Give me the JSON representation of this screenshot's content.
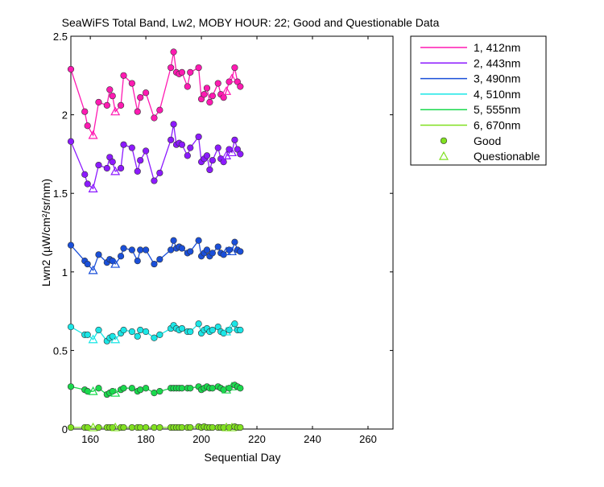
{
  "chart_data": {
    "type": "line",
    "title": "SeaWiFS Total Band, Lw2, MOBY HOUR: 22;  Good and Questionable Data",
    "xlabel": "Sequential Day",
    "ylabel": "Lwn2 (µW/cm²/sr/nm)",
    "xlim": [
      153,
      269
    ],
    "ylim": [
      0,
      2.5
    ],
    "xticks": [
      "160",
      "180",
      "200",
      "220",
      "240",
      "260"
    ],
    "xtick_values": [
      160,
      180,
      200,
      220,
      240,
      260
    ],
    "yticks": [
      "0",
      "0.5",
      "1",
      "1.5",
      "2",
      "2.5"
    ],
    "ytick_values": [
      0,
      0.5,
      1,
      1.5,
      2,
      2.5
    ],
    "grid": false,
    "legend_position": "outside-top-right",
    "marker_legend": [
      {
        "label": "Good",
        "marker": "circle",
        "color": "#80e020"
      },
      {
        "label": "Questionable",
        "marker": "triangle",
        "color": "#80e020"
      }
    ],
    "x": [
      153,
      158,
      159,
      161,
      163,
      166,
      167,
      168,
      169,
      171,
      172,
      175,
      177,
      178,
      180,
      183,
      185,
      189,
      190,
      191,
      192,
      193,
      195,
      196,
      199,
      200,
      201,
      202,
      203,
      204,
      206,
      207,
      208,
      209,
      210,
      211,
      212,
      213,
      214
    ],
    "questionable_x": [
      161,
      169,
      209,
      211
    ],
    "series": [
      {
        "name": "1, 412nm",
        "color": "#ff1ab2",
        "values": [
          2.29,
          2.02,
          1.93,
          1.87,
          2.08,
          2.06,
          2.16,
          2.12,
          2.02,
          2.06,
          2.25,
          2.2,
          2.02,
          2.11,
          2.14,
          1.98,
          2.03,
          2.3,
          2.4,
          2.27,
          2.26,
          2.27,
          2.18,
          2.27,
          2.3,
          2.1,
          2.13,
          2.17,
          2.08,
          2.12,
          2.2,
          2.13,
          2.11,
          2.15,
          2.21,
          2.23,
          2.3,
          2.21,
          2.18
        ],
        "markers": [
          2.29,
          2.02,
          1.93,
          1.87,
          2.08,
          2.06,
          2.16,
          2.12,
          2.02,
          2.06,
          2.25,
          2.2,
          2.02,
          2.11,
          2.14,
          1.98,
          2.03,
          2.3,
          2.4,
          2.27,
          2.26,
          2.27,
          2.18,
          2.27,
          2.3,
          2.1,
          2.13,
          2.17,
          2.08,
          2.12,
          2.2,
          2.13,
          2.11,
          2.15,
          2.21,
          2.23,
          2.3,
          2.21,
          2.18
        ]
      },
      {
        "name": "2, 443nm",
        "color": "#8c1aff",
        "values": [
          1.83,
          1.62,
          1.56,
          1.53,
          1.68,
          1.66,
          1.73,
          1.7,
          1.64,
          1.66,
          1.81,
          1.79,
          1.64,
          1.71,
          1.77,
          1.58,
          1.63,
          1.84,
          1.94,
          1.81,
          1.82,
          1.81,
          1.74,
          1.79,
          1.86,
          1.7,
          1.72,
          1.74,
          1.65,
          1.71,
          1.79,
          1.72,
          1.7,
          1.74,
          1.78,
          1.76,
          1.84,
          1.78,
          1.75
        ],
        "markers": [
          1.83,
          1.62,
          1.56,
          1.53,
          1.68,
          1.66,
          1.73,
          1.7,
          1.64,
          1.66,
          1.81,
          1.79,
          1.64,
          1.71,
          1.77,
          1.58,
          1.63,
          1.84,
          1.94,
          1.81,
          1.82,
          1.81,
          1.74,
          1.79,
          1.86,
          1.7,
          1.72,
          1.74,
          1.65,
          1.71,
          1.79,
          1.72,
          1.7,
          1.74,
          1.78,
          1.76,
          1.84,
          1.78,
          1.75
        ]
      },
      {
        "name": "3, 490nm",
        "color": "#1a4fd9",
        "values": [
          1.17,
          1.07,
          1.05,
          1.01,
          1.11,
          1.06,
          1.08,
          1.07,
          1.05,
          1.1,
          1.15,
          1.14,
          1.07,
          1.14,
          1.14,
          1.05,
          1.08,
          1.14,
          1.2,
          1.15,
          1.16,
          1.15,
          1.12,
          1.13,
          1.2,
          1.1,
          1.12,
          1.14,
          1.1,
          1.12,
          1.16,
          1.12,
          1.11,
          1.13,
          1.14,
          1.13,
          1.19,
          1.14,
          1.13
        ],
        "markers": [
          1.17,
          1.07,
          1.05,
          1.01,
          1.11,
          1.06,
          1.08,
          1.07,
          1.05,
          1.1,
          1.15,
          1.14,
          1.07,
          1.14,
          1.14,
          1.05,
          1.08,
          1.14,
          1.2,
          1.15,
          1.16,
          1.15,
          1.12,
          1.13,
          1.2,
          1.1,
          1.12,
          1.14,
          1.1,
          1.12,
          1.16,
          1.12,
          1.11,
          1.13,
          1.14,
          1.13,
          1.19,
          1.14,
          1.13
        ]
      },
      {
        "name": "4, 510nm",
        "color": "#1ae6e6",
        "values": [
          0.65,
          0.6,
          0.6,
          0.57,
          0.63,
          0.56,
          0.58,
          0.59,
          0.57,
          0.61,
          0.63,
          0.62,
          0.59,
          0.63,
          0.62,
          0.58,
          0.6,
          0.64,
          0.66,
          0.64,
          0.63,
          0.64,
          0.62,
          0.62,
          0.67,
          0.61,
          0.63,
          0.64,
          0.62,
          0.63,
          0.65,
          0.62,
          0.61,
          0.62,
          0.63,
          0.65,
          0.67,
          0.63,
          0.63
        ],
        "markers": [
          0.65,
          0.6,
          0.6,
          0.57,
          0.63,
          0.56,
          0.58,
          0.59,
          0.57,
          0.61,
          0.63,
          0.62,
          0.59,
          0.63,
          0.62,
          0.58,
          0.6,
          0.64,
          0.66,
          0.64,
          0.63,
          0.64,
          0.62,
          0.62,
          0.67,
          0.61,
          0.63,
          0.64,
          0.62,
          0.63,
          0.65,
          0.62,
          0.61,
          0.62,
          0.63,
          0.65,
          0.67,
          0.63,
          0.63
        ]
      },
      {
        "name": "5, 555nm",
        "color": "#1ad94d",
        "values": [
          0.27,
          0.25,
          0.24,
          0.24,
          0.26,
          0.22,
          0.23,
          0.24,
          0.23,
          0.25,
          0.26,
          0.26,
          0.24,
          0.25,
          0.26,
          0.23,
          0.24,
          0.26,
          0.26,
          0.26,
          0.26,
          0.26,
          0.26,
          0.26,
          0.27,
          0.25,
          0.26,
          0.27,
          0.26,
          0.26,
          0.27,
          0.26,
          0.25,
          0.25,
          0.26,
          0.27,
          0.28,
          0.27,
          0.26
        ],
        "markers": [
          0.27,
          0.25,
          0.24,
          0.24,
          0.26,
          0.22,
          0.23,
          0.24,
          0.23,
          0.25,
          0.26,
          0.26,
          0.24,
          0.25,
          0.26,
          0.23,
          0.24,
          0.26,
          0.26,
          0.26,
          0.26,
          0.26,
          0.26,
          0.26,
          0.27,
          0.25,
          0.26,
          0.27,
          0.26,
          0.26,
          0.27,
          0.26,
          0.25,
          0.25,
          0.26,
          0.27,
          0.28,
          0.27,
          0.26
        ]
      },
      {
        "name": "6, 670nm",
        "color": "#80e020",
        "values": [
          0.01,
          0.01,
          0.01,
          0.01,
          0.01,
          0.01,
          0.01,
          0.01,
          0.01,
          0.01,
          0.01,
          0.01,
          0.01,
          0.01,
          0.01,
          0.01,
          0.01,
          0.01,
          0.01,
          0.01,
          0.01,
          0.01,
          0.01,
          0.01,
          0.015,
          0.01,
          0.015,
          0.01,
          0.01,
          0.01,
          0.01,
          0.01,
          0.01,
          0.01,
          0.01,
          0.01,
          0.015,
          0.01,
          0.01
        ],
        "markers": [
          0.01,
          0.01,
          0.01,
          0.01,
          0.01,
          0.01,
          0.01,
          0.01,
          0.01,
          0.01,
          0.01,
          0.01,
          0.01,
          0.01,
          0.01,
          0.01,
          0.01,
          0.01,
          0.01,
          0.01,
          0.01,
          0.01,
          0.01,
          0.01,
          0.015,
          0.01,
          0.015,
          0.01,
          0.01,
          0.01,
          0.01,
          0.01,
          0.01,
          0.01,
          0.01,
          0.01,
          0.015,
          0.01,
          0.01
        ]
      }
    ]
  }
}
